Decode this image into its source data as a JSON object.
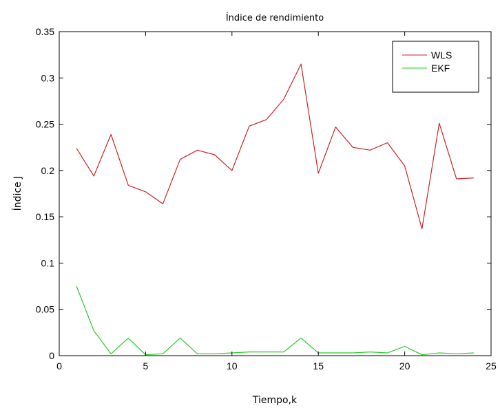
{
  "chart_data": {
    "type": "line",
    "title": "Índice de rendimiento",
    "xlabel": "Tiempo,k",
    "ylabel": "Índice J",
    "xlim": [
      0,
      25
    ],
    "ylim": [
      0,
      0.35
    ],
    "xticks": [
      0,
      5,
      10,
      15,
      20,
      25
    ],
    "xtick_labels": [
      "0",
      "5",
      "10",
      "15",
      "20",
      "25"
    ],
    "yticks": [
      0,
      0.05,
      0.1,
      0.15,
      0.2,
      0.25,
      0.3,
      0.35
    ],
    "ytick_labels": [
      "0",
      "0.05",
      "0.1",
      "0.15",
      "0.2",
      "0.25",
      "0.3",
      "0.35"
    ],
    "grid": false,
    "legend_position": "top-right",
    "x": [
      1,
      2,
      3,
      4,
      5,
      6,
      7,
      8,
      9,
      10,
      11,
      12,
      13,
      14,
      15,
      16,
      17,
      18,
      19,
      20,
      21,
      22,
      23,
      24
    ],
    "series": [
      {
        "name": "WLS",
        "color": "#cc2222",
        "values": [
          0.224,
          0.194,
          0.239,
          0.184,
          0.177,
          0.164,
          0.212,
          0.222,
          0.217,
          0.2,
          0.248,
          0.255,
          0.277,
          0.315,
          0.197,
          0.247,
          0.225,
          0.222,
          0.23,
          0.205,
          0.137,
          0.251,
          0.191,
          0.192
        ]
      },
      {
        "name": "EKF",
        "color": "#22cc22",
        "values": [
          0.075,
          0.027,
          0.002,
          0.019,
          0.001,
          0.002,
          0.019,
          0.002,
          0.002,
          0.003,
          0.004,
          0.004,
          0.004,
          0.019,
          0.003,
          0.003,
          0.003,
          0.004,
          0.003,
          0.01,
          0.001,
          0.003,
          0.002,
          0.003
        ]
      }
    ]
  }
}
